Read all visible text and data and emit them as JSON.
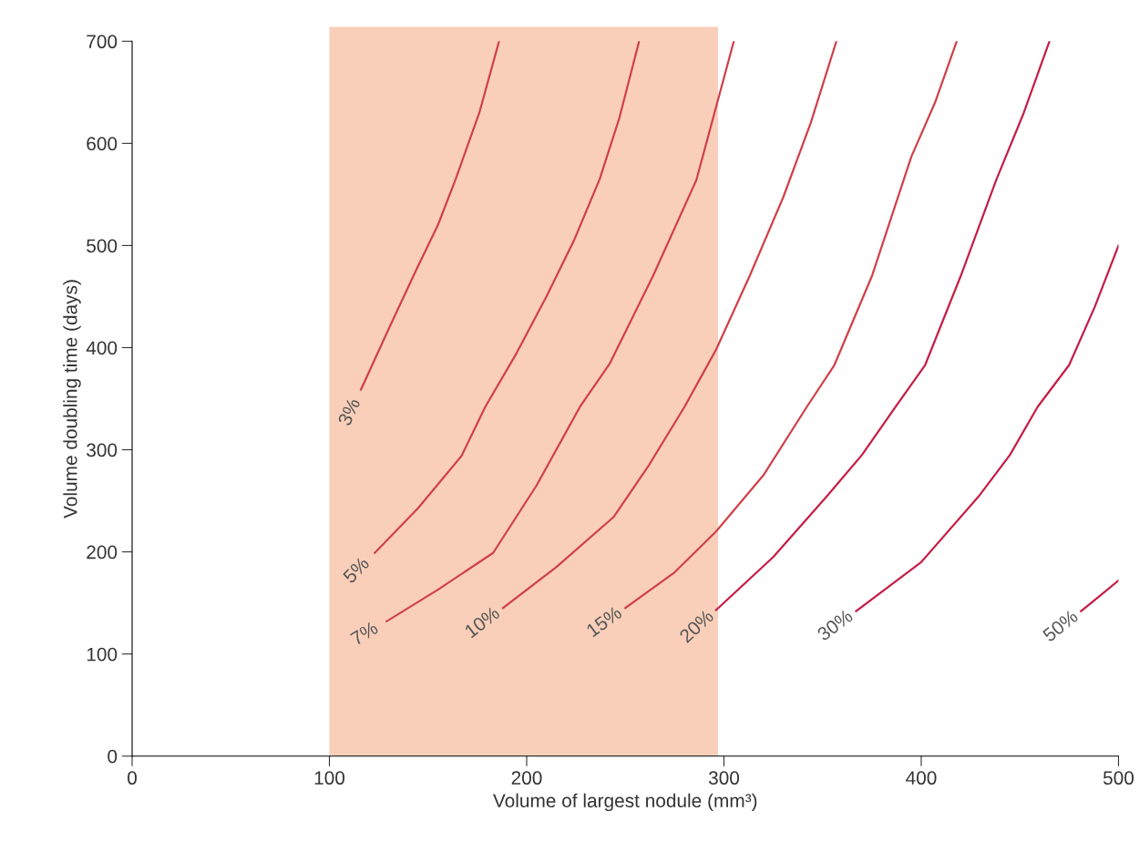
{
  "chart_data": {
    "type": "line",
    "xlabel": "Volume of largest nodule (mm³)",
    "ylabel": "Volume doubling time (days)",
    "xlim": [
      0,
      500
    ],
    "ylim": [
      0,
      700
    ],
    "xticks": [
      0,
      100,
      200,
      300,
      400,
      500
    ],
    "yticks": [
      0,
      100,
      200,
      300,
      400,
      500,
      600,
      700
    ],
    "grid": false,
    "legend": false,
    "marker": "none",
    "line_style": "solid",
    "bands": [
      {
        "axis": "x",
        "from": 100,
        "to": 297,
        "color": "#f9cfb9"
      }
    ],
    "series": [
      {
        "name": "3%",
        "color": "#d0404a",
        "x": [
          116,
          130,
          144,
          155,
          164,
          176,
          186
        ],
        "values": [
          359,
          418,
          476,
          520,
          565,
          630,
          700
        ]
      },
      {
        "name": "5%",
        "color": "#d0404a",
        "x": [
          123,
          145,
          167,
          179,
          195,
          210,
          224,
          237,
          247,
          257
        ],
        "values": [
          199,
          243,
          294,
          342,
          395,
          450,
          505,
          565,
          625,
          700
        ]
      },
      {
        "name": "7%",
        "color": "#d0404a",
        "x": [
          129,
          155,
          183,
          205,
          227,
          242,
          264,
          286,
          305
        ],
        "values": [
          132,
          163,
          199,
          265,
          342,
          384,
          470,
          564,
          700
        ]
      },
      {
        "name": "10%",
        "color": "#d0404a",
        "x": [
          188,
          215,
          244,
          262,
          280,
          296,
          313,
          330,
          344,
          357
        ],
        "values": [
          145,
          185,
          234,
          285,
          342,
          398,
          470,
          547,
          620,
          700
        ]
      },
      {
        "name": "15%",
        "color": "#d0404a",
        "x": [
          250,
          275,
          296,
          320,
          342,
          356,
          375,
          395,
          407,
          418
        ],
        "values": [
          145,
          180,
          220,
          275,
          342,
          383,
          470,
          587,
          640,
          700
        ]
      },
      {
        "name": "20%",
        "color": "#c41e46",
        "x": [
          296,
          325,
          352,
          370,
          387,
          402,
          420,
          438,
          452,
          465
        ],
        "values": [
          143,
          195,
          254,
          295,
          342,
          383,
          470,
          564,
          630,
          700
        ]
      },
      {
        "name": "30%",
        "color": "#c41e46",
        "x": [
          367,
          400,
          429,
          445,
          459,
          475,
          488,
          500
        ],
        "values": [
          142,
          190,
          254,
          295,
          342,
          383,
          440,
          500
        ]
      },
      {
        "name": "50%",
        "color": "#c41e46",
        "x": [
          481,
          490,
          500
        ],
        "values": [
          142,
          156,
          172
        ]
      }
    ]
  }
}
